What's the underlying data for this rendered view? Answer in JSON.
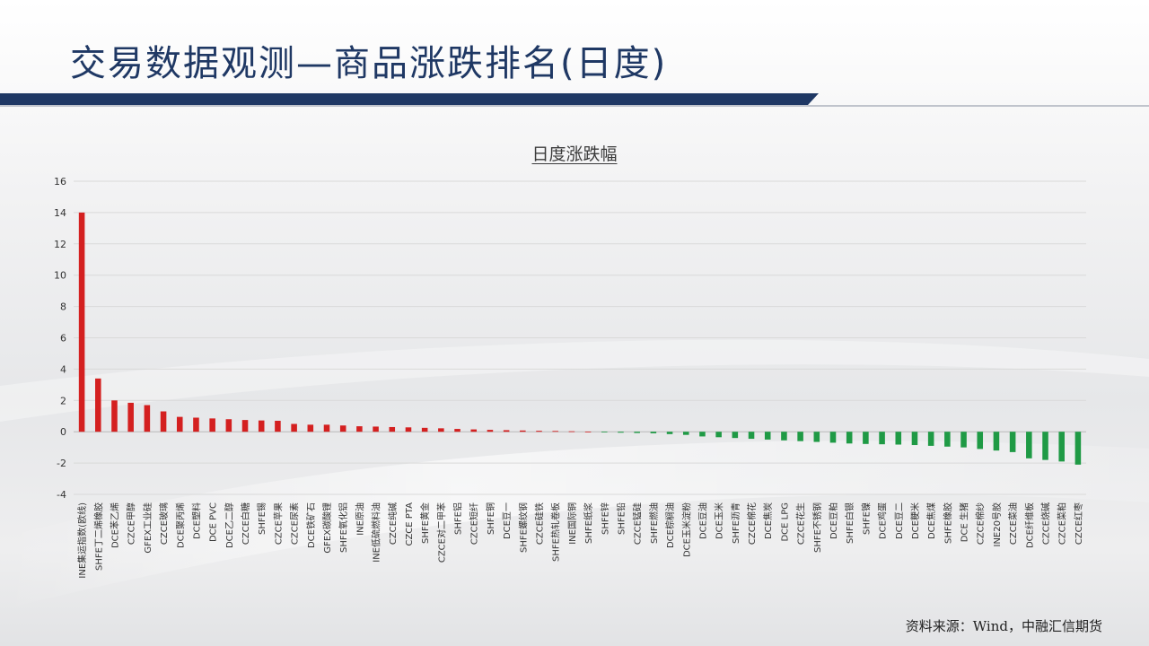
{
  "header": {
    "title": "交易数据观测—商品涨跌排名(日度)"
  },
  "footer": {
    "source": "资料来源：Wind，中融汇信期货"
  },
  "colors": {
    "title": "#1f3864",
    "accent_bar": "#1f3864",
    "up": "#d42020",
    "down": "#1f9a45"
  },
  "chart_data": {
    "type": "bar",
    "title": "日度涨跌幅",
    "xlabel": "",
    "ylabel": "",
    "ylim": [
      -4,
      16
    ],
    "yticks": [
      -4,
      -2,
      0,
      2,
      4,
      6,
      8,
      10,
      12,
      14,
      16
    ],
    "grid": true,
    "legend": "none",
    "categories": [
      "INE集运指数(欧线)",
      "SHFE丁二烯橡胶",
      "DCE苯乙烯",
      "CZCE甲醇",
      "GFEX工业硅",
      "CZCE玻璃",
      "DCE聚丙烯",
      "DCE塑料",
      "DCE PVC",
      "DCE乙二醇",
      "CZCE白糖",
      "SHFE锡",
      "CZCE苹果",
      "CZCE尿素",
      "DCE铁矿石",
      "GFEX碳酸锂",
      "SHFE氧化铝",
      "INE原油",
      "INE低硫燃料油",
      "CZCE纯碱",
      "CZCE PTA",
      "SHFE黄金",
      "CZCE对二甲苯",
      "SHFE铝",
      "CZCE短纤",
      "SHFE铜",
      "DCE豆一",
      "SHFE螺纹钢",
      "CZCE硅铁",
      "SHFE热轧卷板",
      "INE国际铜",
      "SHFE纸浆",
      "SHFE锌",
      "SHFE铅",
      "CZCE锰硅",
      "SHFE燃油",
      "DCE棕榈油",
      "DCE玉米淀粉",
      "DCE豆油",
      "DCE玉米",
      "SHFE沥青",
      "CZCE棉花",
      "DCE焦炭",
      "DCE LPG",
      "CZCE花生",
      "SHFE不锈钢",
      "DCE豆粕",
      "SHFE白银",
      "SHFE镍",
      "DCE鸡蛋",
      "DCE豆二",
      "DCE粳米",
      "DCE焦煤",
      "SHFE橡胶",
      "DCE 生猪",
      "CZCE棉纱",
      "INE20号胶",
      "CZCE菜油",
      "DCE纤维板",
      "CZCE烧碱",
      "CZCE菜粕",
      "CZCE红枣"
    ],
    "values": [
      14.0,
      3.4,
      2.0,
      1.85,
      1.7,
      1.3,
      0.95,
      0.9,
      0.85,
      0.8,
      0.75,
      0.72,
      0.7,
      0.5,
      0.45,
      0.45,
      0.4,
      0.35,
      0.33,
      0.3,
      0.28,
      0.25,
      0.22,
      0.18,
      0.15,
      0.12,
      0.1,
      0.08,
      0.06,
      0.05,
      0.03,
      0.01,
      -0.03,
      -0.06,
      -0.08,
      -0.1,
      -0.15,
      -0.2,
      -0.3,
      -0.35,
      -0.4,
      -0.45,
      -0.5,
      -0.55,
      -0.6,
      -0.65,
      -0.7,
      -0.75,
      -0.78,
      -0.8,
      -0.82,
      -0.85,
      -0.9,
      -0.95,
      -1.0,
      -1.1,
      -1.2,
      -1.3,
      -1.7,
      -1.8,
      -1.9,
      -2.1
    ]
  }
}
